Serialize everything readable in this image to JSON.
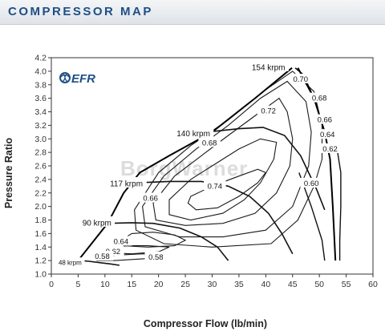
{
  "header": {
    "title": "COMPRESSOR MAP"
  },
  "brand": {
    "logo_text": "EFR",
    "watermark_text": "BorgWarner",
    "accent": "#1e4f86"
  },
  "chart_data": {
    "type": "line",
    "title": "",
    "xlabel": "Compressor Flow (lb/min)",
    "ylabel": "Pressure Ratio",
    "xlim": [
      0,
      60
    ],
    "ylim": [
      1.0,
      4.2
    ],
    "x_ticks": [
      0,
      5,
      10,
      15,
      20,
      25,
      30,
      35,
      40,
      45,
      50,
      55,
      60
    ],
    "y_ticks": [
      1.0,
      1.2,
      1.4,
      1.6,
      1.8,
      2.0,
      2.2,
      2.4,
      2.6,
      2.8,
      3.0,
      3.2,
      3.4,
      3.6,
      3.8,
      4.0,
      4.2
    ],
    "grid": false,
    "surge_line": [
      [
        5.0,
        1.2
      ],
      [
        8.0,
        1.5
      ],
      [
        10.5,
        1.75
      ],
      [
        13.5,
        2.2
      ],
      [
        16.5,
        2.5
      ],
      [
        22,
        2.75
      ],
      [
        30,
        3.1
      ],
      [
        38,
        3.6
      ],
      [
        44.9,
        4.05
      ]
    ],
    "choke_line": [
      [
        46,
        4.05
      ],
      [
        49,
        3.6
      ],
      [
        51,
        3.1
      ],
      [
        52,
        2.7
      ],
      [
        52.5,
        2.0
      ],
      [
        53,
        1.2
      ]
    ],
    "right_edge_lines": [
      [
        [
          53.2,
          2.9
        ],
        [
          54,
          2.5
        ],
        [
          54,
          2.0
        ],
        [
          53.8,
          1.5
        ],
        [
          53.8,
          1.2
        ]
      ],
      [
        [
          46.2,
          2.5
        ],
        [
          48.5,
          2.0
        ],
        [
          50.5,
          1.5
        ],
        [
          51,
          1.2
        ]
      ]
    ],
    "speed_lines": [
      {
        "label": "154 krpm",
        "points": [
          [
            45.5,
            4.05
          ],
          [
            47,
            3.95
          ],
          [
            49,
            3.6
          ],
          [
            51,
            3.1
          ],
          [
            52,
            2.7
          ]
        ]
      },
      {
        "label": "140 krpm",
        "points": [
          [
            29,
            3.1
          ],
          [
            35,
            3.15
          ],
          [
            39.5,
            3.17
          ],
          [
            43.5,
            3.05
          ],
          [
            46.5,
            2.75
          ],
          [
            49.5,
            2.25
          ],
          [
            51,
            1.95
          ]
        ]
      },
      {
        "label": "117 krpm",
        "points": [
          [
            16,
            2.35
          ],
          [
            22,
            2.37
          ],
          [
            28,
            2.37
          ],
          [
            33,
            2.3
          ],
          [
            37,
            2.15
          ],
          [
            40.5,
            1.9
          ],
          [
            43,
            1.6
          ],
          [
            45,
            1.3
          ]
        ]
      },
      {
        "label": "90 krpm",
        "points": [
          [
            10.5,
            1.75
          ],
          [
            15,
            1.76
          ],
          [
            19,
            1.75
          ],
          [
            24,
            1.68
          ],
          [
            28,
            1.55
          ],
          [
            31,
            1.4
          ],
          [
            33,
            1.2
          ]
        ]
      },
      {
        "label": "48 krpm",
        "points": [
          [
            5.2,
            1.2
          ],
          [
            7,
            1.19
          ],
          [
            9,
            1.17
          ],
          [
            11,
            1.15
          ],
          [
            12.7,
            1.13
          ]
        ]
      }
    ],
    "efficiency_islands": [
      {
        "label": "0.74",
        "points": [
          [
            26,
            2.15
          ],
          [
            30,
            2.3
          ],
          [
            35,
            2.45
          ],
          [
            38.5,
            2.55
          ],
          [
            40,
            2.5
          ],
          [
            38.5,
            2.35
          ],
          [
            35,
            2.15
          ],
          [
            31,
            1.98
          ],
          [
            27,
            1.95
          ],
          [
            25.5,
            2.05
          ]
        ]
      },
      {
        "label": "0.72",
        "points": [
          [
            22,
            2.1
          ],
          [
            26,
            2.4
          ],
          [
            30,
            2.6
          ],
          [
            35,
            2.85
          ],
          [
            39,
            3.0
          ],
          [
            42,
            2.95
          ],
          [
            41.5,
            2.7
          ],
          [
            39,
            2.35
          ],
          [
            36,
            2.1
          ],
          [
            32,
            1.9
          ],
          [
            26,
            1.8
          ],
          [
            22,
            1.88
          ]
        ]
      },
      {
        "label": "0.70",
        "points": [
          [
            19,
            2.05
          ],
          [
            23,
            2.45
          ],
          [
            28,
            2.75
          ],
          [
            33,
            3.05
          ],
          [
            39,
            3.4
          ],
          [
            42.5,
            3.6
          ],
          [
            44,
            3.4
          ],
          [
            45,
            3.0
          ],
          [
            44.5,
            2.6
          ],
          [
            42,
            2.2
          ],
          [
            38,
            1.9
          ],
          [
            32,
            1.75
          ],
          [
            25,
            1.72
          ],
          [
            19.5,
            1.8
          ]
        ]
      },
      {
        "label": "0.68",
        "points": [
          [
            17,
            2.0
          ],
          [
            21,
            2.45
          ],
          [
            27,
            2.85
          ],
          [
            33,
            3.2
          ],
          [
            39,
            3.6
          ],
          [
            44,
            3.85
          ],
          [
            47.5,
            3.55
          ],
          [
            48.5,
            3.1
          ],
          [
            48,
            2.6
          ],
          [
            45,
            2.0
          ],
          [
            40,
            1.65
          ],
          [
            32,
            1.55
          ],
          [
            24,
            1.55
          ],
          [
            17.5,
            1.7
          ]
        ]
      },
      {
        "label": "0.66",
        "points": [
          [
            15.5,
            1.95
          ],
          [
            20,
            2.5
          ],
          [
            26,
            2.9
          ],
          [
            33,
            3.28
          ],
          [
            39.5,
            3.7
          ],
          [
            45,
            4.0
          ],
          [
            49,
            3.7
          ],
          [
            50.5,
            3.2
          ],
          [
            50.5,
            2.7
          ],
          [
            49,
            2.3
          ],
          [
            46,
            1.8
          ],
          [
            41,
            1.45
          ],
          [
            30,
            1.4
          ],
          [
            21,
            1.45
          ],
          [
            15.8,
            1.65
          ]
        ]
      },
      {
        "label": "0.64",
        "points": [
          [
            13,
            1.5
          ],
          [
            15,
            1.6
          ],
          [
            19,
            1.62
          ],
          [
            23,
            1.58
          ],
          [
            25,
            1.5
          ],
          [
            23,
            1.42
          ],
          [
            18,
            1.4
          ],
          [
            13.5,
            1.42
          ]
        ]
      },
      {
        "label": "0.62",
        "points": [
          [
            11,
            1.36
          ],
          [
            14,
            1.42
          ],
          [
            18,
            1.42
          ],
          [
            22,
            1.4
          ],
          [
            20,
            1.33
          ],
          [
            15,
            1.3
          ],
          [
            11.5,
            1.31
          ]
        ]
      },
      {
        "label": "0.58",
        "points": [
          [
            8,
            1.23
          ],
          [
            12,
            1.28
          ],
          [
            17,
            1.3
          ],
          [
            21,
            1.27
          ],
          [
            18,
            1.23
          ],
          [
            12,
            1.2
          ],
          [
            8.5,
            1.2
          ]
        ]
      }
    ],
    "efficiency_labels": [
      {
        "text": "0.70",
        "x": 46.5,
        "y": 3.88
      },
      {
        "text": "0.72",
        "x": 40.5,
        "y": 3.41
      },
      {
        "text": "0.68",
        "x": 50.0,
        "y": 3.6
      },
      {
        "text": "0.66",
        "x": 51.0,
        "y": 3.28
      },
      {
        "text": "0.64",
        "x": 51.5,
        "y": 3.06
      },
      {
        "text": "0.62",
        "x": 52.0,
        "y": 2.85
      },
      {
        "text": "0.68",
        "x": 29.5,
        "y": 2.94
      },
      {
        "text": "0.60",
        "x": 48.5,
        "y": 2.34
      },
      {
        "text": "0.74",
        "x": 30.5,
        "y": 2.3
      },
      {
        "text": "0.66",
        "x": 18.5,
        "y": 2.12
      },
      {
        "text": "0.64",
        "x": 13.0,
        "y": 1.48
      },
      {
        "text": "0.62",
        "x": 11.5,
        "y": 1.33
      },
      {
        "text": "0.58",
        "x": 9.5,
        "y": 1.26
      },
      {
        "text": "0.58",
        "x": 19.5,
        "y": 1.25
      }
    ],
    "speed_labels": [
      {
        "text": "154 krpm",
        "x": 40.5,
        "y": 4.06
      },
      {
        "text": "140 krpm",
        "x": 26.5,
        "y": 3.08
      },
      {
        "text": "117 krpm",
        "x": 14.0,
        "y": 2.34
      },
      {
        "text": "90 krpm",
        "x": 8.5,
        "y": 1.76
      },
      {
        "text": "48 krpm",
        "x": 3.5,
        "y": 1.17
      }
    ]
  }
}
